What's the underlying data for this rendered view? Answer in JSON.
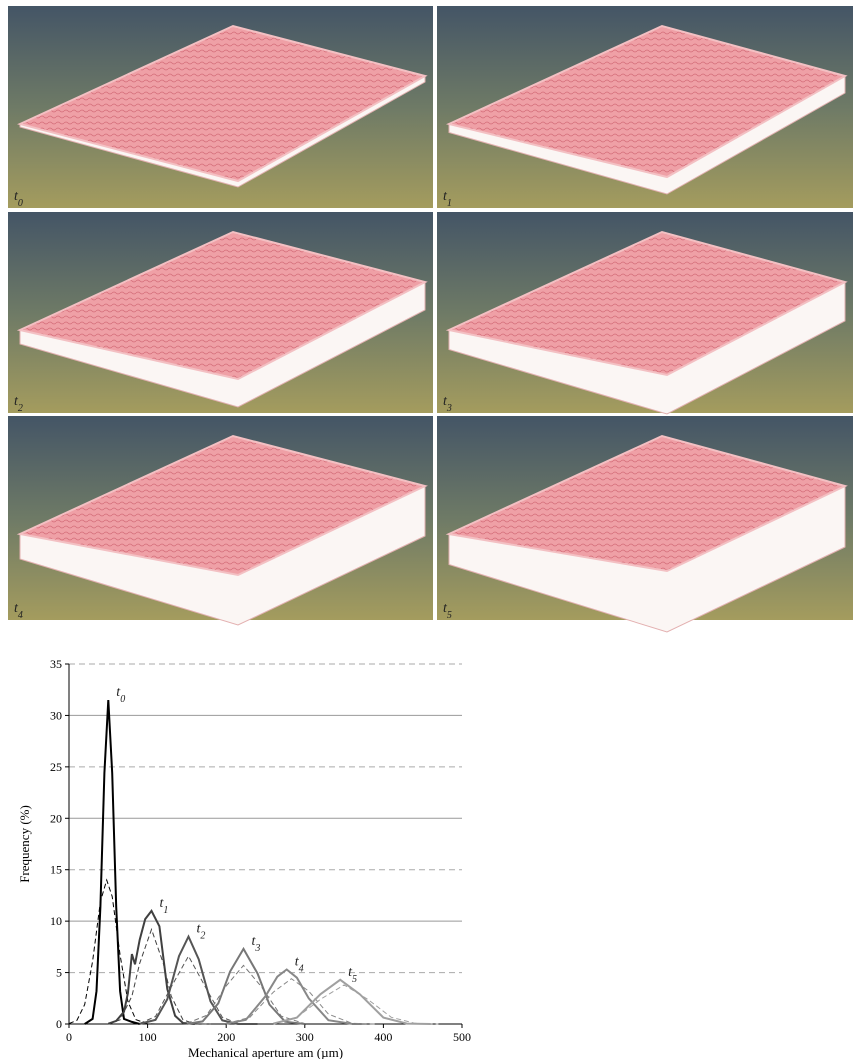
{
  "panels": [
    {
      "label": "t0"
    },
    {
      "label": "t1"
    },
    {
      "label": "t2"
    },
    {
      "label": "t3"
    },
    {
      "label": "t4"
    },
    {
      "label": "t5"
    }
  ],
  "chart_data": {
    "type": "line",
    "x_label": "Mechanical aperture am (µm)",
    "y_label": "Frequency (%)",
    "xlim": [
      0,
      500
    ],
    "xticks": [
      0,
      100,
      200,
      300,
      400,
      500
    ],
    "ylim": [
      0,
      35
    ],
    "yticks": [
      0,
      5,
      10,
      15,
      20,
      25,
      30,
      35
    ],
    "grid": true,
    "series": [
      {
        "name": "t0",
        "color": "#000000",
        "x": [
          20,
          30,
          35,
          40,
          45,
          50,
          55,
          60,
          65,
          70,
          80,
          90
        ],
        "values": [
          0,
          0.5,
          3.2,
          11.4,
          24.4,
          31.5,
          24.4,
          11.4,
          3.2,
          0.5,
          0.2,
          0
        ]
      },
      {
        "color": "#000000",
        "style": "dashed",
        "x": [
          0,
          10,
          20,
          30,
          40,
          48,
          55,
          65,
          75,
          85,
          100,
          120
        ],
        "values": [
          0.04,
          0.35,
          1.9,
          6.1,
          11.9,
          14,
          12.4,
          6.7,
          2.2,
          0.43,
          0.01,
          0
        ]
      },
      {
        "name": "t1",
        "color": "#404040",
        "x": [
          50,
          60,
          70,
          75,
          80,
          84,
          90,
          97,
          105,
          115,
          125,
          135,
          145,
          160
        ],
        "values": [
          0.03,
          0.3,
          1.2,
          3,
          6.8,
          5.8,
          8.2,
          10.2,
          11,
          9.5,
          3.4,
          0.8,
          0.1,
          0
        ]
      },
      {
        "color": "#404040",
        "style": "dashed",
        "x": [
          50,
          65,
          80,
          90,
          105,
          120,
          130,
          145,
          160,
          180
        ],
        "values": [
          0.02,
          0.4,
          2.7,
          5.9,
          9.2,
          5.9,
          2.7,
          0.4,
          0.02,
          0
        ]
      },
      {
        "name": "t2",
        "color": "#555555",
        "x": [
          90,
          110,
          125,
          140,
          152,
          165,
          180,
          195,
          215,
          240
        ],
        "values": [
          0.01,
          0.4,
          2.4,
          6.6,
          8.5,
          6.3,
          2.2,
          0.35,
          0,
          0
        ]
      },
      {
        "color": "#555555",
        "style": "dashed",
        "x": [
          90,
          110,
          130,
          152,
          175,
          195,
          215,
          240
        ],
        "values": [
          0.05,
          0.73,
          3.6,
          6.6,
          3.4,
          0.65,
          0.05,
          0
        ]
      },
      {
        "name": "t3",
        "color": "#777777",
        "x": [
          150,
          170,
          190,
          205,
          222,
          240,
          255,
          275,
          300
        ],
        "values": [
          0.01,
          0.25,
          2,
          5.1,
          7.3,
          4.9,
          1.9,
          0.22,
          0
        ]
      },
      {
        "color": "#777777",
        "style": "dashed",
        "x": [
          150,
          175,
          200,
          222,
          245,
          270,
          300
        ],
        "values": [
          0.06,
          0.84,
          3.7,
          5.7,
          3.6,
          0.77,
          0.03
        ]
      },
      {
        "name": "t4",
        "color": "#888888",
        "x": [
          200,
          225,
          250,
          265,
          277,
          290,
          305,
          330,
          360
        ],
        "values": [
          0.02,
          0.4,
          2.7,
          4.6,
          5.3,
          4.5,
          2.5,
          0.37,
          0.01
        ]
      },
      {
        "color": "#888888",
        "style": "dashed",
        "x": [
          200,
          230,
          260,
          283,
          305,
          330,
          360,
          390
        ],
        "values": [
          0.04,
          0.64,
          3.1,
          4.4,
          3.2,
          0.96,
          0.07,
          0
        ]
      },
      {
        "name": "t5",
        "color": "#a0a0a0",
        "x": [
          260,
          290,
          320,
          345,
          370,
          400,
          430,
          460
        ],
        "values": [
          0.04,
          0.62,
          2.9,
          4.3,
          2.9,
          0.62,
          0.04,
          0
        ]
      },
      {
        "color": "#a0a0a0",
        "style": "dashed",
        "x": [
          260,
          290,
          320,
          350,
          380,
          410,
          440,
          470
        ],
        "values": [
          0.07,
          0.65,
          2.4,
          3.8,
          2.4,
          0.65,
          0.07,
          0
        ]
      }
    ]
  }
}
